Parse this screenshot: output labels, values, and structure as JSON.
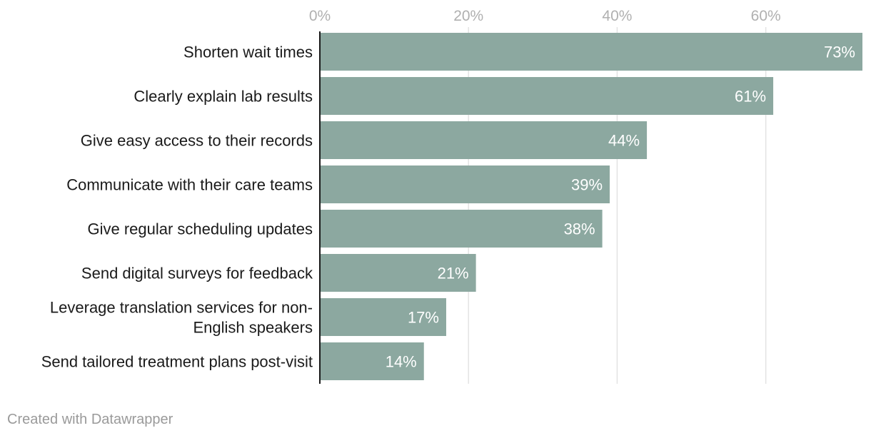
{
  "chart_data": {
    "type": "bar",
    "orientation": "horizontal",
    "title": "",
    "xlabel": "",
    "ylabel": "",
    "categories": [
      "Shorten wait times",
      "Clearly explain lab results",
      "Give easy access to their records",
      "Communicate with their care teams",
      "Give regular scheduling updates",
      "Send digital surveys for feedback",
      "Leverage translation services for non-English speakers",
      "Send tailored treatment plans post-visit"
    ],
    "category_lines": [
      [
        "Shorten wait times"
      ],
      [
        "Clearly explain lab results"
      ],
      [
        "Give easy access to their records"
      ],
      [
        "Communicate with their care teams"
      ],
      [
        "Give regular scheduling updates"
      ],
      [
        "Send digital surveys for feedback"
      ],
      [
        "Leverage translation services for non-",
        "English speakers"
      ],
      [
        "Send tailored treatment plans post-visit"
      ]
    ],
    "values": [
      73,
      61,
      44,
      39,
      38,
      21,
      17,
      14
    ],
    "value_labels": [
      "73%",
      "61%",
      "44%",
      "39%",
      "38%",
      "21%",
      "17%",
      "14%"
    ],
    "xlim": [
      0,
      73
    ],
    "ticks": [
      0,
      20,
      40,
      60
    ],
    "tick_labels": [
      "0%",
      "20%",
      "40%",
      "60%"
    ],
    "grid": true,
    "bar_color": "#8ca8a0"
  },
  "footer": {
    "credit": "Created with Datawrapper"
  }
}
